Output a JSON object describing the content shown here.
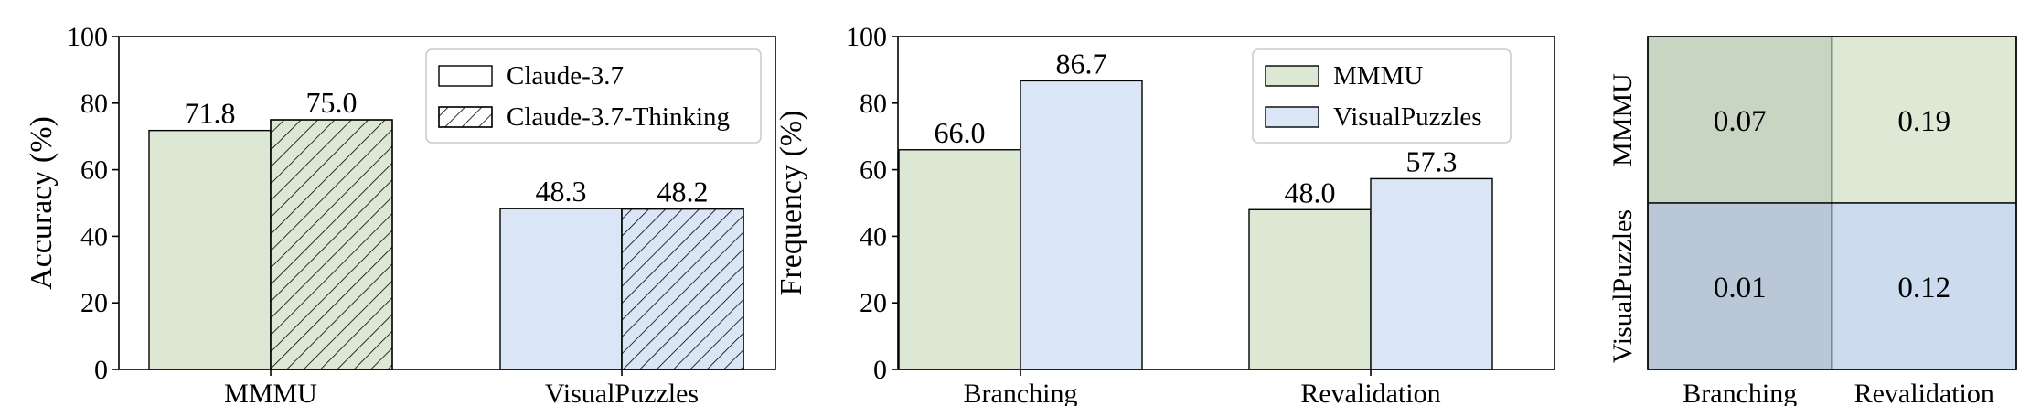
{
  "chart_data": [
    {
      "type": "bar",
      "categories": [
        "MMMU",
        "VisualPuzzles"
      ],
      "series": [
        {
          "name": "Claude-3.7",
          "values": [
            71.8,
            48.3
          ],
          "value_labels": [
            "71.8",
            "48.3"
          ],
          "hatch": false
        },
        {
          "name": "Claude-3.7-Thinking",
          "values": [
            75.0,
            48.2
          ],
          "value_labels": [
            "75.0",
            "48.2"
          ],
          "hatch": true
        }
      ],
      "category_colors": [
        "#dce8d4",
        "#dae6f6"
      ],
      "ylabel": "Accuracy (%)",
      "xlabel": "",
      "ylim": [
        0,
        100
      ],
      "yticks": [
        "0",
        "20",
        "40",
        "60",
        "80",
        "100"
      ],
      "legend": "top-right",
      "grid": false
    },
    {
      "type": "bar",
      "categories": [
        "Branching",
        "Revalidation"
      ],
      "series": [
        {
          "name": "MMMU",
          "values": [
            66.0,
            48.0
          ],
          "value_labels": [
            "66.0",
            "48.0"
          ],
          "color": "#dce8d4"
        },
        {
          "name": "VisualPuzzles",
          "values": [
            86.7,
            57.3
          ],
          "value_labels": [
            "86.7",
            "57.3"
          ],
          "color": "#dae6f6"
        }
      ],
      "ylabel": "Frequency (%)",
      "xlabel": "",
      "ylim": [
        0,
        100
      ],
      "yticks": [
        "0",
        "20",
        "40",
        "60",
        "80",
        "100"
      ],
      "legend": "top-right",
      "grid": false
    },
    {
      "type": "heatmap",
      "rows": [
        "MMMU",
        "VisualPuzzles"
      ],
      "columns": [
        "Branching",
        "Revalidation"
      ],
      "values": [
        [
          0.07,
          0.19
        ],
        [
          0.01,
          0.12
        ]
      ],
      "value_labels": [
        [
          "0.07",
          "0.19"
        ],
        [
          "0.01",
          "0.12"
        ]
      ],
      "cell_colors": [
        [
          "#c8d5c3",
          "#dde9d5"
        ],
        [
          "#bac7d6",
          "#ccdbee"
        ]
      ]
    }
  ]
}
